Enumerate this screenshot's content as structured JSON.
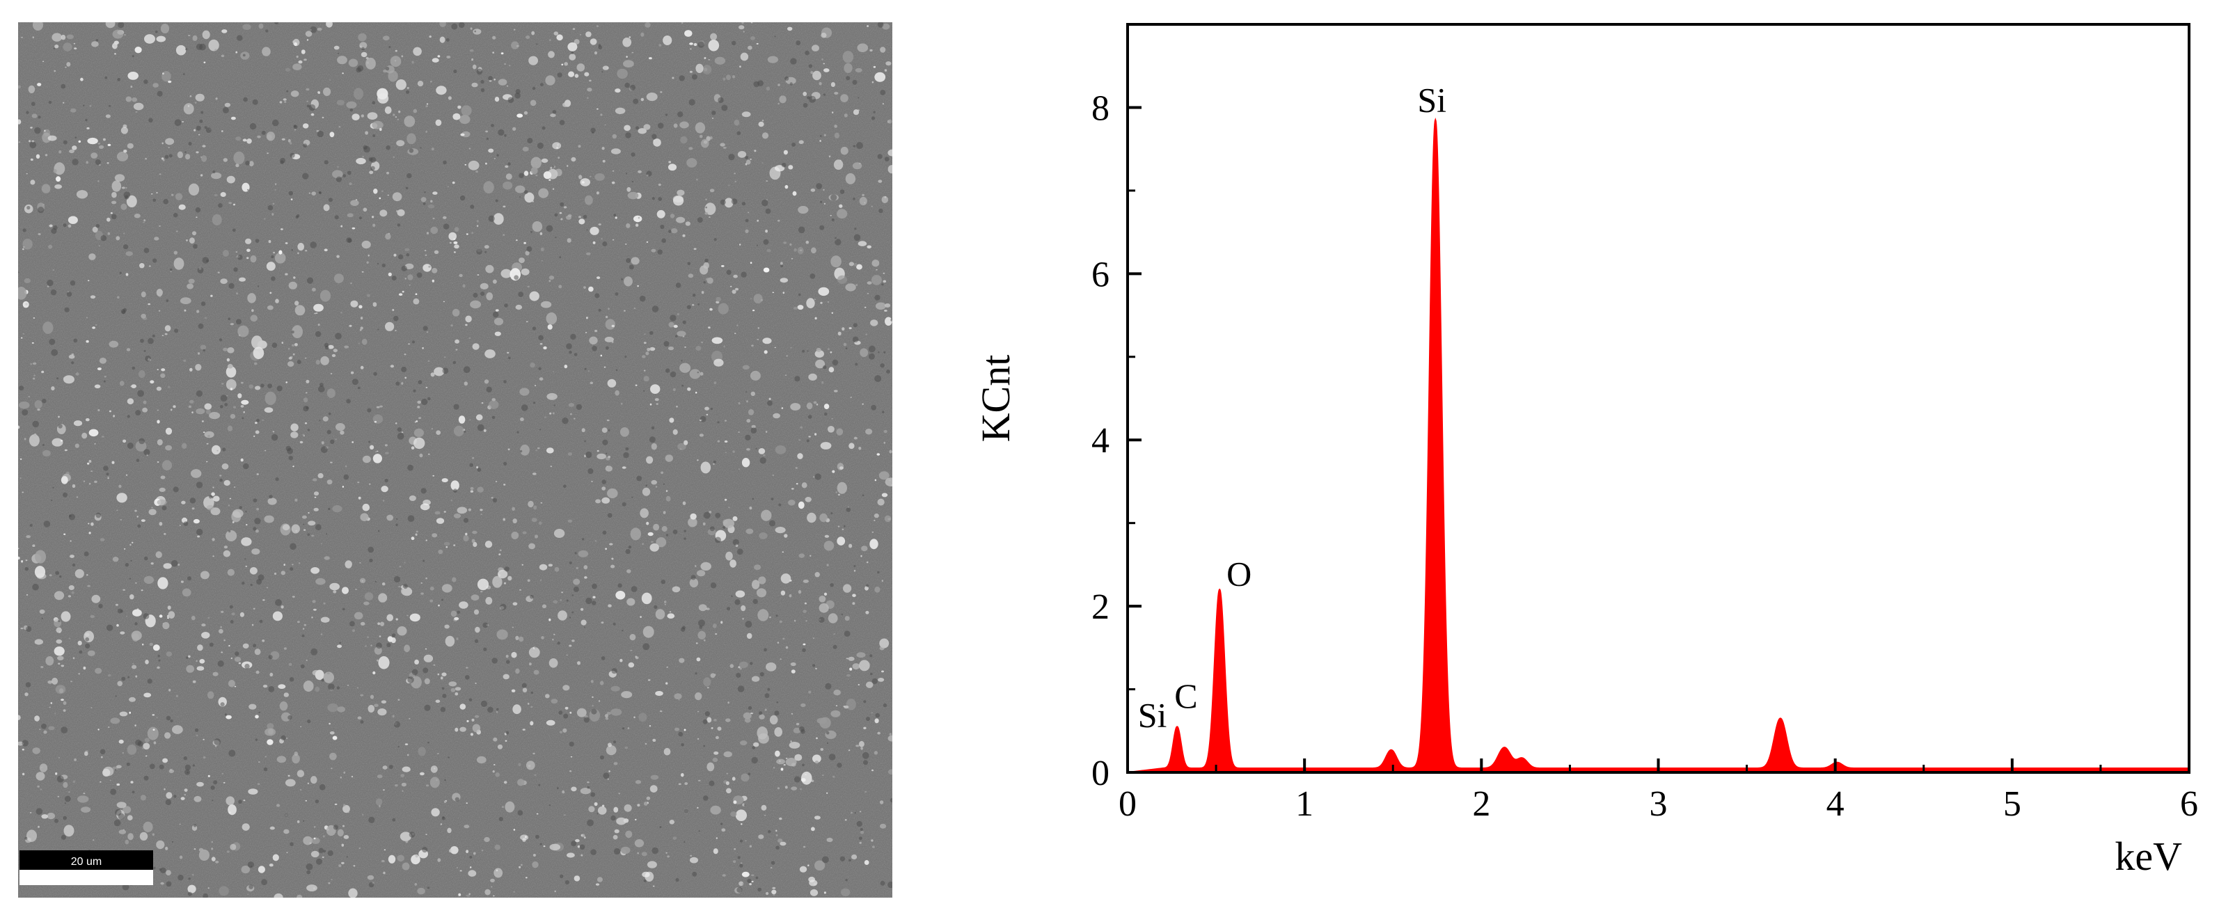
{
  "sem_image": {
    "scale_bar_label": "20 um",
    "background_color": "#6e6e6e",
    "particle_color": "#c9c9c9"
  },
  "chart_data": {
    "type": "line",
    "title": "",
    "xlabel": "keV",
    "ylabel": "KCnt",
    "xlim": [
      0,
      6
    ],
    "ylim": [
      0,
      9
    ],
    "x_ticks": [
      0,
      1,
      2,
      3,
      4,
      5,
      6
    ],
    "y_ticks": [
      0,
      2,
      4,
      6,
      8
    ],
    "grid": false,
    "fill": true,
    "series_color": "#ff0000",
    "baseline": 0.05,
    "peaks": [
      {
        "x": 0.28,
        "y": 0.5,
        "width": 0.022
      },
      {
        "x": 0.52,
        "y": 2.15,
        "width": 0.028
      },
      {
        "x": 1.49,
        "y": 0.22,
        "width": 0.03
      },
      {
        "x": 1.74,
        "y": 7.8,
        "width": 0.034
      },
      {
        "x": 2.13,
        "y": 0.25,
        "width": 0.035
      },
      {
        "x": 2.23,
        "y": 0.12,
        "width": 0.03
      },
      {
        "x": 3.69,
        "y": 0.6,
        "width": 0.035
      },
      {
        "x": 4.01,
        "y": 0.07,
        "width": 0.03
      }
    ],
    "annotations": [
      {
        "text": "Si",
        "x": 0.14,
        "y": 0.55
      },
      {
        "text": "C",
        "x": 0.33,
        "y": 0.78
      },
      {
        "text": "O",
        "x": 0.63,
        "y": 2.25
      },
      {
        "text": "Si",
        "x": 1.72,
        "y": 7.95
      }
    ]
  }
}
